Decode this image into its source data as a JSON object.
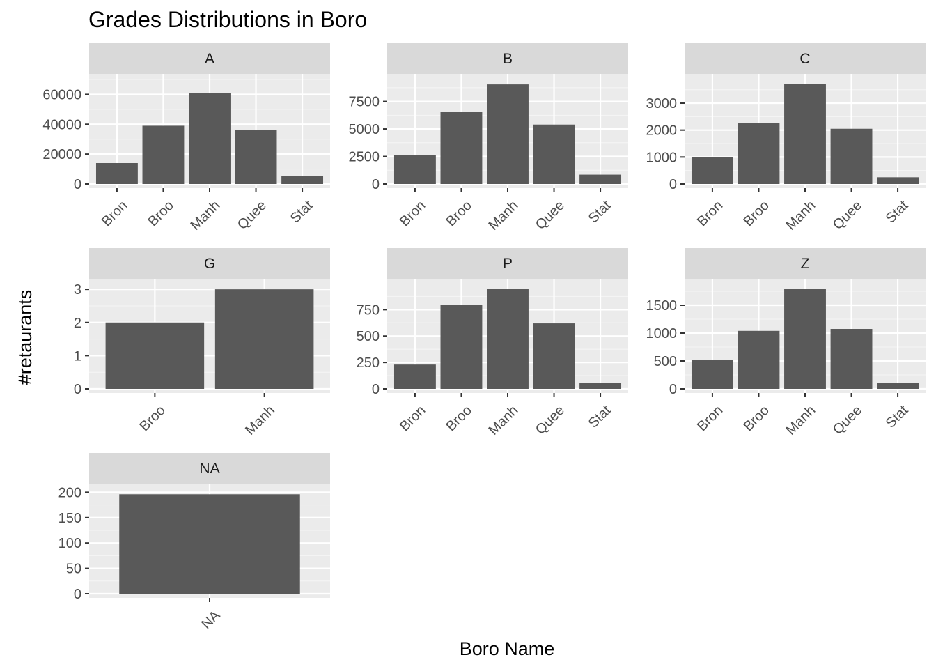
{
  "title": "Grades Distributions in Boro",
  "xlabel": "Boro Name",
  "ylabel": "#retaurants",
  "colors": {
    "panel_bg": "#ebebeb",
    "strip_bg": "#d9d9d9",
    "grid_major": "#ffffff",
    "bar": "#595959",
    "tick_text": "#4d4d4d",
    "tick_mark": "#333333"
  },
  "chart_data": [
    {
      "type": "bar",
      "facet": "A",
      "categories": [
        "Bron",
        "Broo",
        "Manh",
        "Quee",
        "Stat"
      ],
      "values": [
        14000,
        39000,
        61000,
        36000,
        5500
      ],
      "ylim": [
        0,
        70000
      ],
      "yticks": [
        0,
        20000,
        40000,
        60000
      ],
      "yticklabels": [
        "0",
        "20000",
        "40000",
        "60000"
      ]
    },
    {
      "type": "bar",
      "facet": "B",
      "categories": [
        "Bron",
        "Broo",
        "Manh",
        "Quee",
        "Stat"
      ],
      "values": [
        2650,
        6550,
        9050,
        5400,
        850
      ],
      "ylim": [
        0,
        9500
      ],
      "yticks": [
        0,
        2500,
        5000,
        7500
      ],
      "yticklabels": [
        "0",
        "2500",
        "5000",
        "7500"
      ]
    },
    {
      "type": "bar",
      "facet": "C",
      "categories": [
        "Bron",
        "Broo",
        "Manh",
        "Quee",
        "Stat"
      ],
      "values": [
        1000,
        2270,
        3700,
        2050,
        250
      ],
      "ylim": [
        0,
        3880
      ],
      "yticks": [
        0,
        1000,
        2000,
        3000
      ],
      "yticklabels": [
        "0",
        "1000",
        "2000",
        "3000"
      ]
    },
    {
      "type": "bar",
      "facet": "G",
      "categories": [
        "Broo",
        "Manh"
      ],
      "values": [
        2,
        3
      ],
      "ylim": [
        0,
        3.15
      ],
      "yticks": [
        0,
        1,
        2,
        3
      ],
      "yticklabels": [
        "0",
        "1",
        "2",
        "3"
      ]
    },
    {
      "type": "bar",
      "facet": "P",
      "categories": [
        "Bron",
        "Broo",
        "Manh",
        "Quee",
        "Stat"
      ],
      "values": [
        230,
        795,
        945,
        620,
        55
      ],
      "ylim": [
        0,
        990
      ],
      "yticks": [
        0,
        250,
        500,
        750
      ],
      "yticklabels": [
        "0",
        "250",
        "500",
        "750"
      ]
    },
    {
      "type": "bar",
      "facet": "Z",
      "categories": [
        "Bron",
        "Broo",
        "Manh",
        "Quee",
        "Stat"
      ],
      "values": [
        520,
        1040,
        1790,
        1075,
        110
      ],
      "ylim": [
        0,
        1875
      ],
      "yticks": [
        0,
        500,
        1000,
        1500
      ],
      "yticklabels": [
        "0",
        "500",
        "1000",
        "1500"
      ]
    },
    {
      "type": "bar",
      "facet": "NA",
      "categories": [
        "NA"
      ],
      "values": [
        196
      ],
      "ylim": [
        0,
        206
      ],
      "yticks": [
        0,
        50,
        100,
        150,
        200
      ],
      "yticklabels": [
        "0",
        "50",
        "100",
        "150",
        "200"
      ]
    }
  ]
}
